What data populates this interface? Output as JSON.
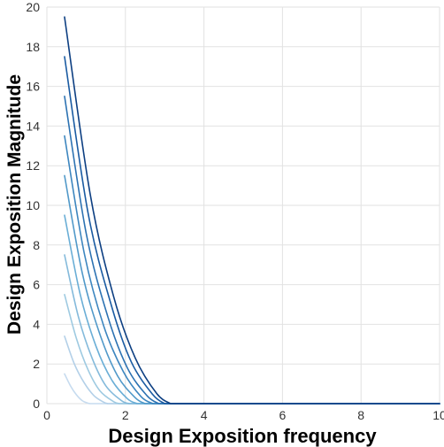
{
  "chart_data": {
    "type": "line",
    "title": "",
    "xlabel": "Design Exposition frequency",
    "ylabel": "Design Exposition Magnitude",
    "xlim": [
      0,
      10
    ],
    "ylim": [
      0,
      20
    ],
    "grid": true,
    "legend": "none",
    "x_ticks": [
      "0",
      "2",
      "4",
      "6",
      "8",
      "10"
    ],
    "y_ticks": [
      "0",
      "2",
      "4",
      "6",
      "8",
      "10",
      "12",
      "14",
      "16",
      "18",
      "20"
    ],
    "series": [
      {
        "color": "#c6dbef",
        "x": [
          0.45,
          0.6,
          0.75,
          0.9,
          1.05,
          1.1,
          10
        ],
        "y": [
          1.5,
          0.9,
          0.45,
          0.15,
          0.02,
          0,
          0
        ]
      },
      {
        "color": "#b3d0e8",
        "x": [
          0.45,
          0.7,
          0.95,
          1.2,
          1.45,
          1.55,
          10
        ],
        "y": [
          3.4,
          2.0,
          1.05,
          0.4,
          0.07,
          0,
          0
        ]
      },
      {
        "color": "#9ecae1",
        "x": [
          0.45,
          0.75,
          1.05,
          1.35,
          1.7,
          1.85,
          10
        ],
        "y": [
          5.5,
          3.3,
          1.7,
          0.65,
          0.1,
          0,
          0
        ]
      },
      {
        "color": "#84badb",
        "x": [
          0.45,
          0.8,
          1.15,
          1.5,
          1.9,
          2.1,
          10
        ],
        "y": [
          7.5,
          4.4,
          2.3,
          0.9,
          0.15,
          0,
          0
        ]
      },
      {
        "color": "#6aaed6",
        "x": [
          0.45,
          0.85,
          1.25,
          1.65,
          2.05,
          2.3,
          10
        ],
        "y": [
          9.5,
          5.5,
          2.9,
          1.2,
          0.25,
          0,
          0
        ]
      },
      {
        "color": "#5199c9",
        "x": [
          0.45,
          0.9,
          1.35,
          1.8,
          2.25,
          2.5,
          10
        ],
        "y": [
          11.5,
          6.6,
          3.5,
          1.4,
          0.3,
          0,
          0
        ]
      },
      {
        "color": "#3d86bf",
        "x": [
          0.45,
          0.95,
          1.45,
          1.95,
          2.4,
          2.7,
          10
        ],
        "y": [
          13.5,
          7.6,
          3.9,
          1.6,
          0.35,
          0,
          0
        ]
      },
      {
        "color": "#2c72b2",
        "x": [
          0.45,
          1.0,
          1.55,
          2.05,
          2.55,
          2.85,
          10
        ],
        "y": [
          15.5,
          8.6,
          4.4,
          1.8,
          0.4,
          0,
          0
        ]
      },
      {
        "color": "#1a5ba2",
        "x": [
          0.45,
          1.05,
          1.65,
          2.15,
          2.7,
          3.0,
          10
        ],
        "y": [
          17.5,
          9.6,
          4.9,
          2.1,
          0.45,
          0,
          0
        ]
      },
      {
        "color": "#0d3f82",
        "x": [
          0.45,
          1.1,
          1.7,
          2.25,
          2.8,
          3.15,
          10
        ],
        "y": [
          19.5,
          10.6,
          5.4,
          2.3,
          0.5,
          0,
          0
        ]
      }
    ]
  }
}
